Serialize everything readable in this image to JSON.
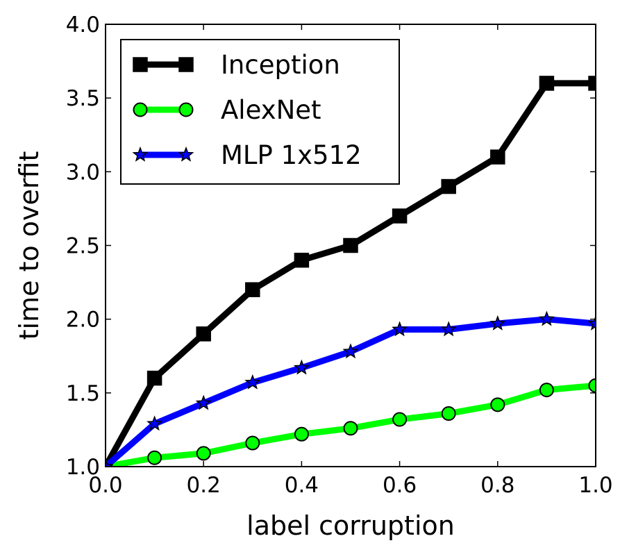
{
  "chart_data": {
    "type": "line",
    "title": "",
    "xlabel": "label corruption",
    "ylabel": "time to overfit",
    "xlim": [
      0.0,
      1.0
    ],
    "ylim": [
      1.0,
      4.0
    ],
    "xticks": [
      "0.0",
      "0.2",
      "0.4",
      "0.6",
      "0.8",
      "1.0"
    ],
    "yticks": [
      "1.0",
      "1.5",
      "2.0",
      "2.5",
      "3.0",
      "3.5",
      "4.0"
    ],
    "grid": false,
    "legend_position": "top-left",
    "x": [
      0.0,
      0.1,
      0.2,
      0.3,
      0.4,
      0.5,
      0.6,
      0.7,
      0.8,
      0.9,
      1.0
    ],
    "series": [
      {
        "name": "Inception",
        "color": "#000000",
        "marker": "square",
        "values": [
          1.0,
          1.6,
          1.9,
          2.2,
          2.4,
          2.5,
          2.7,
          2.9,
          3.1,
          3.6,
          3.6
        ]
      },
      {
        "name": "AlexNet",
        "color": "#00ff00",
        "marker": "circle",
        "values": [
          1.0,
          1.06,
          1.09,
          1.16,
          1.22,
          1.26,
          1.32,
          1.36,
          1.42,
          1.52,
          1.55
        ]
      },
      {
        "name": "MLP 1x512",
        "color": "#0000ff",
        "marker": "star",
        "values": [
          1.0,
          1.29,
          1.43,
          1.57,
          1.67,
          1.78,
          1.93,
          1.93,
          1.97,
          2.0,
          1.97
        ]
      }
    ]
  }
}
